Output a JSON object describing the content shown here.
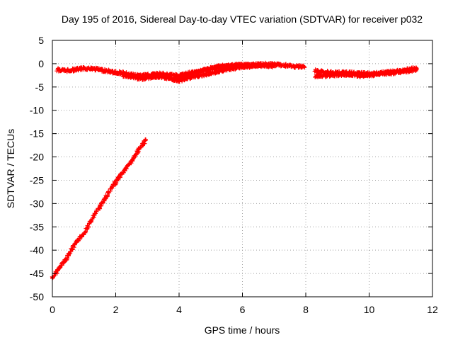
{
  "chart_data": {
    "type": "scatter",
    "title": "Day 195 of 2016, Sidereal Day-to-day VTEC variation (SDTVAR) for receiver p032",
    "xlabel": "GPS time / hours",
    "ylabel": "SDTVAR / TECUs",
    "xlim": [
      0,
      12
    ],
    "ylim": [
      -50,
      5
    ],
    "xticks": [
      0,
      2,
      4,
      6,
      8,
      10,
      12
    ],
    "yticks": [
      5,
      0,
      -5,
      -10,
      -15,
      -20,
      -25,
      -30,
      -35,
      -40,
      -45,
      -50
    ],
    "grid": true,
    "series_color": "#ff0000",
    "series": [
      {
        "segments": [
          {
            "x": [
              0.0,
              0.2,
              0.4,
              0.6,
              0.8,
              1.0,
              1.2,
              1.4,
              1.6,
              1.8,
              2.0,
              2.2,
              2.4,
              2.6,
              2.8,
              2.95
            ],
            "y": [
              -46.0,
              -44.0,
              -42.2,
              -40.0,
              -38.0,
              -36.3,
              -34.0,
              -31.7,
              -29.6,
              -27.4,
              -25.4,
              -23.6,
              -21.8,
              -19.9,
              -17.8,
              -16.3
            ]
          },
          {
            "x": [
              0.15,
              0.4,
              0.7,
              1.0,
              1.3,
              1.6,
              1.9,
              2.2,
              2.5,
              2.8,
              3.1,
              3.4,
              3.7,
              4.0,
              4.3,
              4.6,
              4.9,
              5.2,
              5.5,
              5.8,
              6.1,
              6.4,
              6.7,
              7.0,
              7.3,
              7.6,
              7.95
            ],
            "y": [
              -1.3,
              -1.5,
              -1.3,
              -1.0,
              -1.1,
              -1.4,
              -1.8,
              -2.0,
              -2.4,
              -2.6,
              -2.4,
              -2.2,
              -2.4,
              -2.6,
              -2.1,
              -1.7,
              -1.2,
              -0.9,
              -0.6,
              -0.4,
              -0.3,
              -0.2,
              -0.1,
              -0.2,
              -0.3,
              -0.6,
              -0.7
            ]
          },
          {
            "x": [
              2.2,
              2.5,
              2.8,
              3.1,
              3.4,
              3.7,
              4.0,
              4.3,
              4.6,
              4.9,
              5.2,
              5.5,
              5.8,
              6.1,
              6.4,
              6.7,
              7.0
            ],
            "y": [
              -2.5,
              -2.8,
              -3.2,
              -2.9,
              -2.7,
              -3.1,
              -3.6,
              -3.0,
              -2.6,
              -2.2,
              -1.7,
              -1.2,
              -0.9,
              -0.6,
              -0.5,
              -0.4,
              -0.5
            ]
          },
          {
            "x": [
              3.8,
              4.1,
              4.4,
              4.7,
              5.0,
              5.3,
              5.6,
              5.9,
              6.2,
              6.5
            ],
            "y": [
              -3.5,
              -2.9,
              -2.2,
              -1.6,
              -1.0,
              -0.6,
              -0.4,
              -0.3,
              -0.3,
              -0.4
            ]
          },
          {
            "x": [
              8.3,
              8.6,
              8.9,
              9.2,
              9.5,
              9.8,
              10.1,
              10.4,
              10.7,
              11.0,
              11.3,
              11.5
            ],
            "y": [
              -1.5,
              -1.8,
              -2.0,
              -1.9,
              -2.0,
              -2.1,
              -2.2,
              -2.0,
              -1.8,
              -1.5,
              -1.2,
              -1.0
            ]
          },
          {
            "x": [
              8.3,
              8.6,
              8.9,
              9.2,
              9.5,
              9.8,
              10.1,
              10.4,
              10.7,
              11.0,
              11.3,
              11.5
            ],
            "y": [
              -2.6,
              -2.6,
              -2.4,
              -2.3,
              -2.4,
              -2.6,
              -2.4,
              -2.1,
              -2.0,
              -1.7,
              -1.5,
              -1.3
            ]
          }
        ]
      }
    ]
  }
}
